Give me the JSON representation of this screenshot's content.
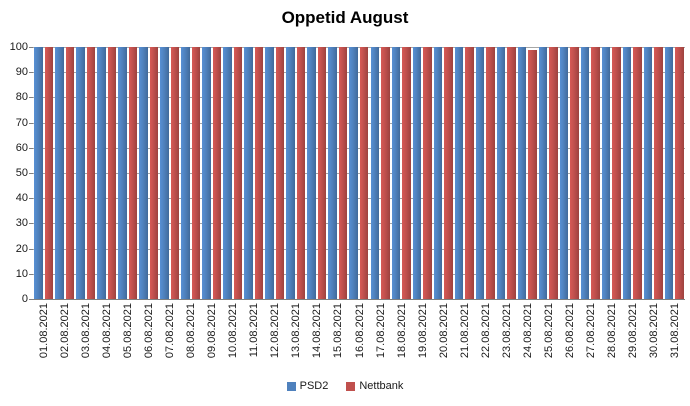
{
  "title": "Oppetid August",
  "chart_data": {
    "type": "bar",
    "title": "Oppetid August",
    "categories": [
      "01.08.2021",
      "02.08.2021",
      "03.08.2021",
      "04.08.2021",
      "05.08.2021",
      "06.08.2021",
      "07.08.2021",
      "08.08.2021",
      "09.08.2021",
      "10.08.2021",
      "11.08.2021",
      "12.08.2021",
      "13.08.2021",
      "14.08.2021",
      "15.08.2021",
      "16.08.2021",
      "17.08.2021",
      "18.08.2021",
      "19.08.2021",
      "20.08.2021",
      "21.08.2021",
      "22.08.2021",
      "23.08.2021",
      "24.08.2021",
      "25.08.2021",
      "26.08.2021",
      "27.08.2021",
      "28.08.2021",
      "29.08.2021",
      "30.08.2021",
      "31.08.2021"
    ],
    "series": [
      {
        "name": "PSD2",
        "color": "#4F81BD",
        "values": [
          100,
          100,
          100,
          100,
          100,
          100,
          100,
          100,
          100,
          100,
          100,
          100,
          100,
          100,
          100,
          100,
          100,
          100,
          100,
          100,
          100,
          100,
          100,
          100,
          100,
          100,
          100,
          100,
          100,
          100,
          100
        ]
      },
      {
        "name": "Nettbank",
        "color": "#C0504D",
        "values": [
          100,
          100,
          100,
          100,
          100,
          100,
          100,
          100,
          100,
          100,
          100,
          100,
          100,
          100,
          100,
          100,
          100,
          100,
          100,
          100,
          100,
          100,
          100,
          99,
          100,
          100,
          100,
          100,
          100,
          100,
          100
        ]
      }
    ],
    "xlabel": "",
    "ylabel": "",
    "ylim": [
      0,
      100
    ],
    "yticks": [
      0,
      10,
      20,
      30,
      40,
      50,
      60,
      70,
      80,
      90,
      100
    ],
    "grid": true,
    "legend_position": "bottom",
    "gridline_color": "#A6A6A6",
    "axis_color": "#808080"
  }
}
